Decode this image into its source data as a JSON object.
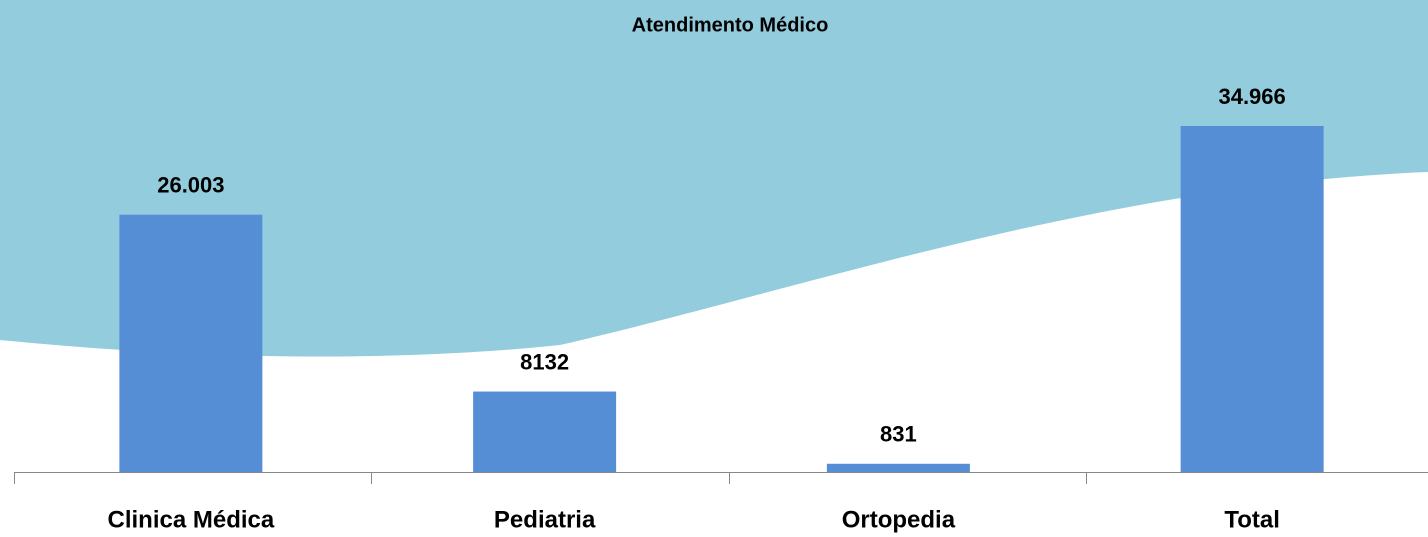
{
  "chart_data": {
    "type": "bar",
    "title": "Atendimento Médico",
    "categories": [
      "Clinica Médica",
      "Pediatria",
      "Ortopedia",
      "Total"
    ],
    "values": [
      26003,
      8132,
      831,
      34966
    ],
    "value_labels": [
      "26.003",
      "8132",
      "831",
      "34.966"
    ],
    "color": "#558ed5"
  }
}
